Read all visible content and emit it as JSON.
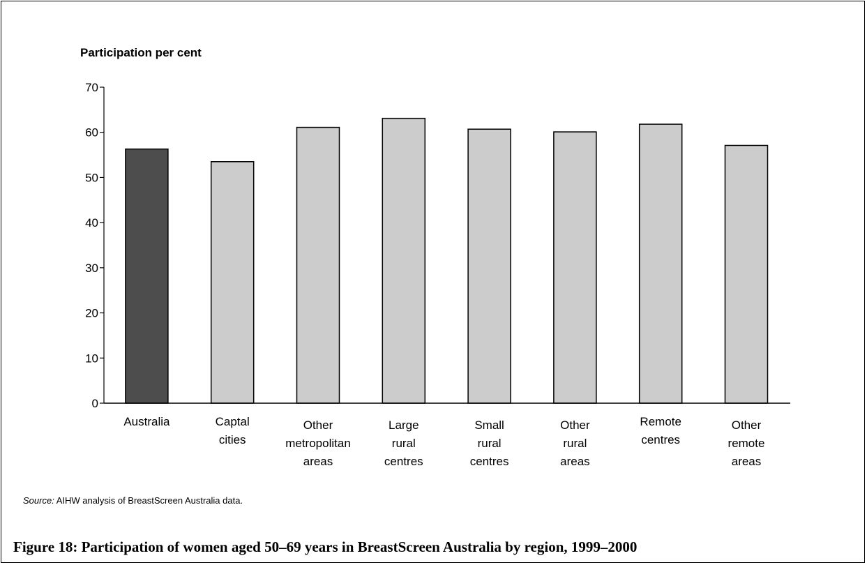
{
  "chart_data": {
    "type": "bar",
    "ylabel": "Participation per cent",
    "xlabel": "",
    "ylim": [
      0,
      70
    ],
    "yticks": [
      0,
      10,
      20,
      30,
      40,
      50,
      60,
      70
    ],
    "categories": [
      [
        "Australia"
      ],
      [
        "Captal",
        "cities"
      ],
      [
        "Other",
        "metropolitan",
        "areas"
      ],
      [
        "Large",
        "rural",
        "centres"
      ],
      [
        "Small",
        "rural",
        "centres"
      ],
      [
        "Other",
        "rural",
        "areas"
      ],
      [
        "Remote",
        "centres"
      ],
      [
        "Other",
        "remote",
        "areas"
      ]
    ],
    "values": [
      56.3,
      53.5,
      61.1,
      63.1,
      60.7,
      60.1,
      61.8,
      57.1
    ],
    "colors": {
      "highlight": "#4d4d4d",
      "default": "#cccccc",
      "outline": "#000000"
    },
    "grid": false,
    "legend": "none"
  },
  "source": {
    "label": "Source:",
    "text": " AIHW analysis of BreastScreen Australia data."
  },
  "caption": "Figure 18: Participation of women aged 50–69 years in BreastScreen Australia by region, 1999–2000"
}
